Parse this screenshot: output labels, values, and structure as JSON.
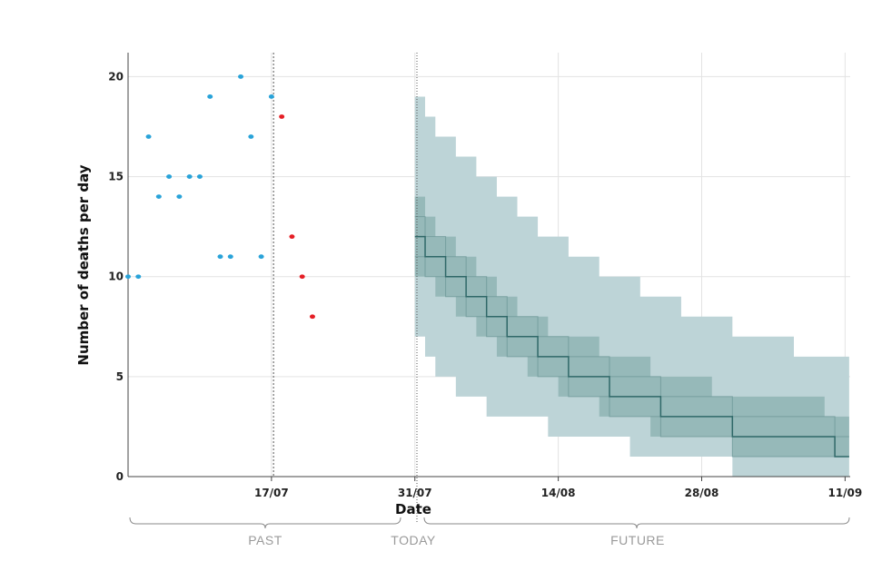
{
  "chart_data": {
    "type": "scatter",
    "xlabel": "Date",
    "ylabel": "Number of deaths per day",
    "ylim": [
      0,
      21.2
    ],
    "xlim": [
      0,
      70.5
    ],
    "x_unit": "days since 03/07",
    "yticks": [
      0,
      5,
      10,
      15,
      20
    ],
    "xticks": [
      {
        "day": 14,
        "label": "17/07"
      },
      {
        "day": 28,
        "label": "31/07"
      },
      {
        "day": 42,
        "label": "14/08"
      },
      {
        "day": 56,
        "label": "28/08"
      },
      {
        "day": 70,
        "label": "11/09"
      }
    ],
    "grid": true,
    "past_label": "PAST",
    "today_label": "TODAY",
    "future_label": "FUTURE",
    "today_day": 28.2,
    "cutoff_day": 14.2,
    "colors": {
      "observed": "#29a3d9",
      "recent": "#e51e25",
      "band_outer": "#bdd4d7",
      "band_inner": "#8fb4b4",
      "median_line": "#2f6868",
      "grid": "#e3e3e3",
      "axis": "#444444"
    },
    "observed": {
      "x": [
        0,
        1,
        2,
        3,
        4,
        5,
        6,
        7,
        8,
        9,
        10,
        11,
        12,
        13,
        14
      ],
      "y": [
        10,
        10,
        17,
        14,
        15,
        14,
        15,
        15,
        19,
        11,
        11,
        20,
        17,
        11,
        19
      ]
    },
    "recent": {
      "x": [
        15,
        16,
        17,
        18
      ],
      "y": [
        18,
        12,
        10,
        8
      ]
    },
    "forecast": {
      "x": [
        28,
        29,
        30,
        31,
        32,
        33,
        34,
        35,
        36,
        37,
        38,
        39,
        40,
        41,
        42,
        43,
        44,
        45,
        46,
        47,
        48,
        49,
        50,
        51,
        52,
        53,
        54,
        55,
        56,
        57,
        58,
        59,
        60,
        61,
        62,
        63,
        64,
        65,
        66,
        67,
        68,
        69,
        70
      ],
      "median": [
        12,
        11,
        11,
        10,
        10,
        9,
        9,
        8,
        8,
        7,
        7,
        7,
        6,
        6,
        6,
        5,
        5,
        5,
        5,
        4,
        4,
        4,
        4,
        4,
        3,
        3,
        3,
        3,
        3,
        3,
        3,
        2,
        2,
        2,
        2,
        2,
        2,
        2,
        2,
        2,
        2,
        1,
        1
      ],
      "inner_upper": [
        14,
        13,
        12,
        12,
        11,
        11,
        10,
        10,
        9,
        9,
        8,
        8,
        8,
        7,
        7,
        7,
        7,
        7,
        6,
        6,
        6,
        6,
        6,
        5,
        5,
        5,
        5,
        5,
        5,
        4,
        4,
        4,
        4,
        4,
        4,
        4,
        4,
        4,
        4,
        4,
        3,
        3,
        3
      ],
      "inner_lower": [
        10,
        10,
        9,
        9,
        8,
        8,
        7,
        7,
        6,
        6,
        6,
        5,
        5,
        5,
        4,
        4,
        4,
        4,
        3,
        3,
        3,
        3,
        3,
        2,
        2,
        2,
        2,
        2,
        2,
        2,
        2,
        1,
        1,
        1,
        1,
        1,
        1,
        1,
        1,
        1,
        1,
        1,
        1
      ],
      "outer_upper": [
        19,
        18,
        17,
        17,
        16,
        16,
        15,
        15,
        14,
        14,
        13,
        13,
        12,
        12,
        12,
        11,
        11,
        11,
        10,
        10,
        10,
        10,
        9,
        9,
        9,
        9,
        8,
        8,
        8,
        8,
        8,
        7,
        7,
        7,
        7,
        7,
        7,
        6,
        6,
        6,
        6,
        6,
        6
      ],
      "outer_lower": [
        7,
        6,
        5,
        5,
        4,
        4,
        4,
        3,
        3,
        3,
        3,
        3,
        3,
        2,
        2,
        2,
        2,
        2,
        2,
        2,
        2,
        1,
        1,
        1,
        1,
        1,
        1,
        1,
        1,
        1,
        1,
        0,
        0,
        0,
        0,
        0,
        0,
        0,
        0,
        0,
        0,
        0,
        0
      ]
    }
  }
}
